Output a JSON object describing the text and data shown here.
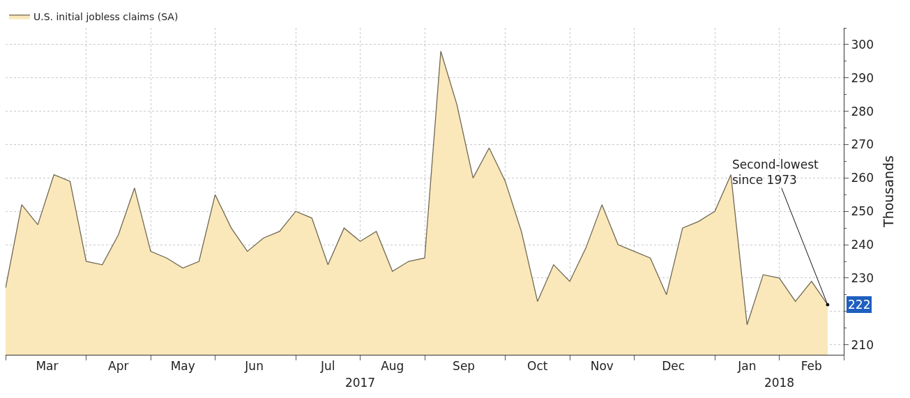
{
  "chart_data": {
    "type": "area",
    "x": [
      "2017-02-25",
      "2017-03-04",
      "2017-03-11",
      "2017-03-18",
      "2017-03-25",
      "2017-04-01",
      "2017-04-08",
      "2017-04-15",
      "2017-04-22",
      "2017-04-29",
      "2017-05-06",
      "2017-05-13",
      "2017-05-20",
      "2017-05-27",
      "2017-06-03",
      "2017-06-10",
      "2017-06-17",
      "2017-06-24",
      "2017-07-01",
      "2017-07-08",
      "2017-07-15",
      "2017-07-22",
      "2017-07-29",
      "2017-08-05",
      "2017-08-12",
      "2017-08-19",
      "2017-08-26",
      "2017-09-02",
      "2017-09-09",
      "2017-09-16",
      "2017-09-23",
      "2017-09-30",
      "2017-10-07",
      "2017-10-14",
      "2017-10-21",
      "2017-10-28",
      "2017-11-04",
      "2017-11-11",
      "2017-11-18",
      "2017-11-25",
      "2017-12-02",
      "2017-12-09",
      "2017-12-16",
      "2017-12-23",
      "2017-12-30",
      "2018-01-06",
      "2018-01-13",
      "2018-01-20",
      "2018-01-27",
      "2018-02-03",
      "2018-02-10",
      "2018-02-17"
    ],
    "series": [
      {
        "name": "U.S. initial jobless claims (SA)",
        "color": "#fae8ba",
        "values": [
          227,
          252,
          246,
          261,
          259,
          235,
          234,
          243,
          257,
          238,
          236,
          233,
          235,
          255,
          245,
          238,
          242,
          244,
          250,
          248,
          234,
          245,
          241,
          244,
          232,
          235,
          236,
          298,
          282,
          260,
          269,
          259,
          244,
          223,
          234,
          229,
          239,
          252,
          240,
          238,
          236,
          225,
          245,
          247,
          250,
          261,
          216,
          231,
          230,
          223,
          229,
          222
        ],
        "value_labels": [
          null,
          null,
          null,
          null,
          null,
          null,
          null,
          null,
          null,
          null,
          null,
          null,
          null,
          null,
          null,
          null,
          null,
          null,
          null,
          null,
          null,
          null,
          null,
          null,
          null,
          null,
          null,
          null,
          null,
          null,
          null,
          null,
          null,
          null,
          null,
          null,
          null,
          null,
          null,
          null,
          null,
          null,
          null,
          null,
          null,
          null,
          null,
          null,
          null,
          null,
          null,
          "222"
        ]
      }
    ],
    "ylabel": "Thousands",
    "xlim": [
      "2017-02-25",
      "2018-02-24"
    ],
    "xticks": [
      {
        "value": "2017-02-25",
        "label": null
      },
      {
        "value": "2017-03-15",
        "label": "Mar"
      },
      {
        "value": "2017-04-01",
        "label": null
      },
      {
        "value": "2017-04-15",
        "label": "Apr"
      },
      {
        "value": "2017-04-29",
        "label": null
      },
      {
        "value": "2017-05-13",
        "label": "May"
      },
      {
        "value": "2017-05-27",
        "label": null
      },
      {
        "value": "2017-06-13",
        "label": "Jun"
      },
      {
        "value": "2017-07-01",
        "label": null
      },
      {
        "value": "2017-07-15",
        "label": "Jul"
      },
      {
        "value": "2017-07-29",
        "label": null
      },
      {
        "value": "2017-08-12",
        "label": "Aug"
      },
      {
        "value": "2017-08-26",
        "label": null
      },
      {
        "value": "2017-09-12",
        "label": "Sep"
      },
      {
        "value": "2017-09-30",
        "label": null
      },
      {
        "value": "2017-10-14",
        "label": "Oct"
      },
      {
        "value": "2017-10-28",
        "label": null
      },
      {
        "value": "2017-11-11",
        "label": "Nov"
      },
      {
        "value": "2017-11-25",
        "label": null
      },
      {
        "value": "2017-12-12",
        "label": "Dec"
      },
      {
        "value": "2017-12-30",
        "label": null
      },
      {
        "value": "2018-01-13",
        "label": "Jan"
      },
      {
        "value": "2018-01-27",
        "label": null
      },
      {
        "value": "2018-02-10",
        "label": "Feb"
      },
      {
        "value": "2018-02-24",
        "label": null
      }
    ],
    "x2lim": [
      "2017-02-25",
      "2018-02-24"
    ],
    "x2ticks": [
      {
        "value": "2017-07-29",
        "label": "2017"
      },
      {
        "value": "2018-01-27",
        "label": "2018"
      }
    ],
    "ylim": [
      207,
      305
    ],
    "yticks": [
      210,
      {
        "value": 220,
        "label": null
      },
      230,
      240,
      250,
      260,
      270,
      280,
      290,
      300
    ],
    "grid": true,
    "legend": "top left",
    "annotations": [
      {
        "text": "Second-lowest\nsince 1973",
        "x": "2018-02-17",
        "y": 222
      }
    ]
  }
}
